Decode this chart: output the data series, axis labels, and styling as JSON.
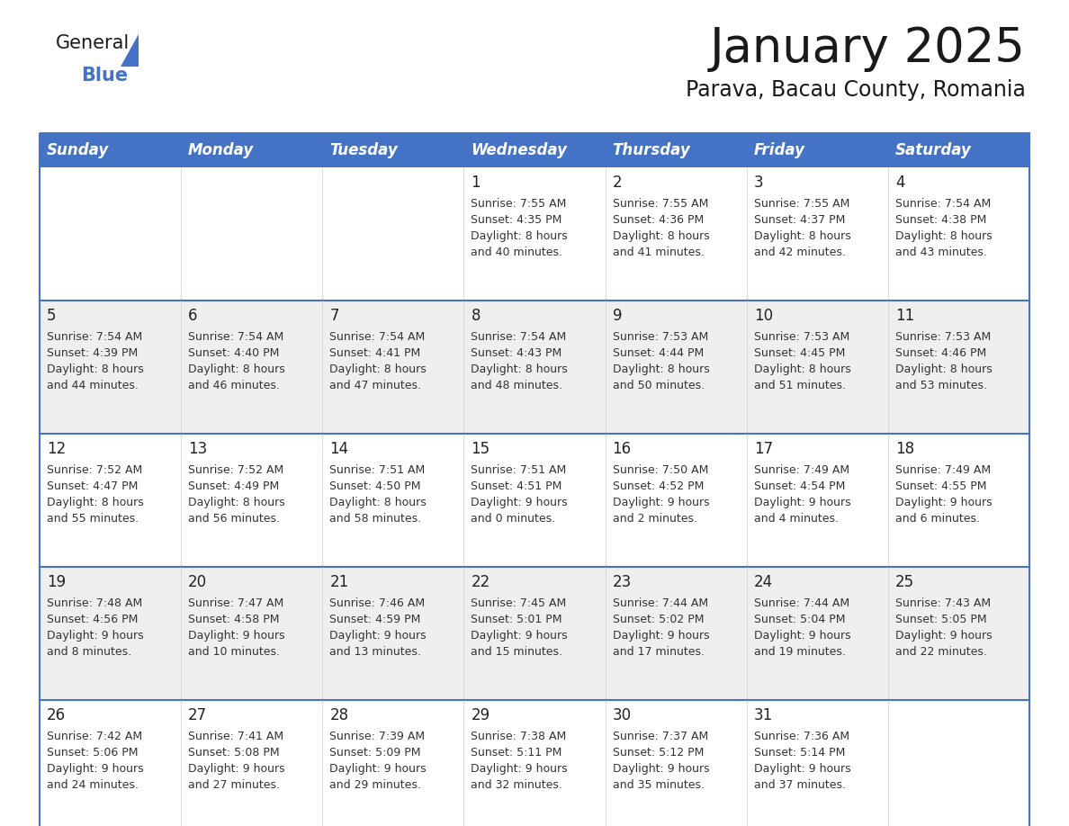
{
  "title": "January 2025",
  "subtitle": "Parava, Bacau County, Romania",
  "header_bg": "#4472C4",
  "header_text_color": "#FFFFFF",
  "cell_bg_white": "#FFFFFF",
  "cell_bg_light": "#EFEFEF",
  "border_color": "#4472C4",
  "text_color": "#333333",
  "day_num_color": "#222222",
  "days_of_week": [
    "Sunday",
    "Monday",
    "Tuesday",
    "Wednesday",
    "Thursday",
    "Friday",
    "Saturday"
  ],
  "calendar_data": [
    [
      {
        "day": "",
        "sunrise": "",
        "sunset": "",
        "daylight_hours": "",
        "daylight_mins": ""
      },
      {
        "day": "",
        "sunrise": "",
        "sunset": "",
        "daylight_hours": "",
        "daylight_mins": ""
      },
      {
        "day": "",
        "sunrise": "",
        "sunset": "",
        "daylight_hours": "",
        "daylight_mins": ""
      },
      {
        "day": "1",
        "sunrise": "7:55 AM",
        "sunset": "4:35 PM",
        "daylight_hours": "8 hours",
        "daylight_mins": "40 minutes."
      },
      {
        "day": "2",
        "sunrise": "7:55 AM",
        "sunset": "4:36 PM",
        "daylight_hours": "8 hours",
        "daylight_mins": "41 minutes."
      },
      {
        "day": "3",
        "sunrise": "7:55 AM",
        "sunset": "4:37 PM",
        "daylight_hours": "8 hours",
        "daylight_mins": "42 minutes."
      },
      {
        "day": "4",
        "sunrise": "7:54 AM",
        "sunset": "4:38 PM",
        "daylight_hours": "8 hours",
        "daylight_mins": "43 minutes."
      }
    ],
    [
      {
        "day": "5",
        "sunrise": "7:54 AM",
        "sunset": "4:39 PM",
        "daylight_hours": "8 hours",
        "daylight_mins": "44 minutes."
      },
      {
        "day": "6",
        "sunrise": "7:54 AM",
        "sunset": "4:40 PM",
        "daylight_hours": "8 hours",
        "daylight_mins": "46 minutes."
      },
      {
        "day": "7",
        "sunrise": "7:54 AM",
        "sunset": "4:41 PM",
        "daylight_hours": "8 hours",
        "daylight_mins": "47 minutes."
      },
      {
        "day": "8",
        "sunrise": "7:54 AM",
        "sunset": "4:43 PM",
        "daylight_hours": "8 hours",
        "daylight_mins": "48 minutes."
      },
      {
        "day": "9",
        "sunrise": "7:53 AM",
        "sunset": "4:44 PM",
        "daylight_hours": "8 hours",
        "daylight_mins": "50 minutes."
      },
      {
        "day": "10",
        "sunrise": "7:53 AM",
        "sunset": "4:45 PM",
        "daylight_hours": "8 hours",
        "daylight_mins": "51 minutes."
      },
      {
        "day": "11",
        "sunrise": "7:53 AM",
        "sunset": "4:46 PM",
        "daylight_hours": "8 hours",
        "daylight_mins": "53 minutes."
      }
    ],
    [
      {
        "day": "12",
        "sunrise": "7:52 AM",
        "sunset": "4:47 PM",
        "daylight_hours": "8 hours",
        "daylight_mins": "55 minutes."
      },
      {
        "day": "13",
        "sunrise": "7:52 AM",
        "sunset": "4:49 PM",
        "daylight_hours": "8 hours",
        "daylight_mins": "56 minutes."
      },
      {
        "day": "14",
        "sunrise": "7:51 AM",
        "sunset": "4:50 PM",
        "daylight_hours": "8 hours",
        "daylight_mins": "58 minutes."
      },
      {
        "day": "15",
        "sunrise": "7:51 AM",
        "sunset": "4:51 PM",
        "daylight_hours": "9 hours",
        "daylight_mins": "0 minutes."
      },
      {
        "day": "16",
        "sunrise": "7:50 AM",
        "sunset": "4:52 PM",
        "daylight_hours": "9 hours",
        "daylight_mins": "2 minutes."
      },
      {
        "day": "17",
        "sunrise": "7:49 AM",
        "sunset": "4:54 PM",
        "daylight_hours": "9 hours",
        "daylight_mins": "4 minutes."
      },
      {
        "day": "18",
        "sunrise": "7:49 AM",
        "sunset": "4:55 PM",
        "daylight_hours": "9 hours",
        "daylight_mins": "6 minutes."
      }
    ],
    [
      {
        "day": "19",
        "sunrise": "7:48 AM",
        "sunset": "4:56 PM",
        "daylight_hours": "9 hours",
        "daylight_mins": "8 minutes."
      },
      {
        "day": "20",
        "sunrise": "7:47 AM",
        "sunset": "4:58 PM",
        "daylight_hours": "9 hours",
        "daylight_mins": "10 minutes."
      },
      {
        "day": "21",
        "sunrise": "7:46 AM",
        "sunset": "4:59 PM",
        "daylight_hours": "9 hours",
        "daylight_mins": "13 minutes."
      },
      {
        "day": "22",
        "sunrise": "7:45 AM",
        "sunset": "5:01 PM",
        "daylight_hours": "9 hours",
        "daylight_mins": "15 minutes."
      },
      {
        "day": "23",
        "sunrise": "7:44 AM",
        "sunset": "5:02 PM",
        "daylight_hours": "9 hours",
        "daylight_mins": "17 minutes."
      },
      {
        "day": "24",
        "sunrise": "7:44 AM",
        "sunset": "5:04 PM",
        "daylight_hours": "9 hours",
        "daylight_mins": "19 minutes."
      },
      {
        "day": "25",
        "sunrise": "7:43 AM",
        "sunset": "5:05 PM",
        "daylight_hours": "9 hours",
        "daylight_mins": "22 minutes."
      }
    ],
    [
      {
        "day": "26",
        "sunrise": "7:42 AM",
        "sunset": "5:06 PM",
        "daylight_hours": "9 hours",
        "daylight_mins": "24 minutes."
      },
      {
        "day": "27",
        "sunrise": "7:41 AM",
        "sunset": "5:08 PM",
        "daylight_hours": "9 hours",
        "daylight_mins": "27 minutes."
      },
      {
        "day": "28",
        "sunrise": "7:39 AM",
        "sunset": "5:09 PM",
        "daylight_hours": "9 hours",
        "daylight_mins": "29 minutes."
      },
      {
        "day": "29",
        "sunrise": "7:38 AM",
        "sunset": "5:11 PM",
        "daylight_hours": "9 hours",
        "daylight_mins": "32 minutes."
      },
      {
        "day": "30",
        "sunrise": "7:37 AM",
        "sunset": "5:12 PM",
        "daylight_hours": "9 hours",
        "daylight_mins": "35 minutes."
      },
      {
        "day": "31",
        "sunrise": "7:36 AM",
        "sunset": "5:14 PM",
        "daylight_hours": "9 hours",
        "daylight_mins": "37 minutes."
      },
      {
        "day": "",
        "sunrise": "",
        "sunset": "",
        "daylight_hours": "",
        "daylight_mins": ""
      }
    ]
  ],
  "title_fontsize": 38,
  "subtitle_fontsize": 17,
  "header_fontsize": 12,
  "day_num_fontsize": 12,
  "cell_text_fontsize": 9
}
